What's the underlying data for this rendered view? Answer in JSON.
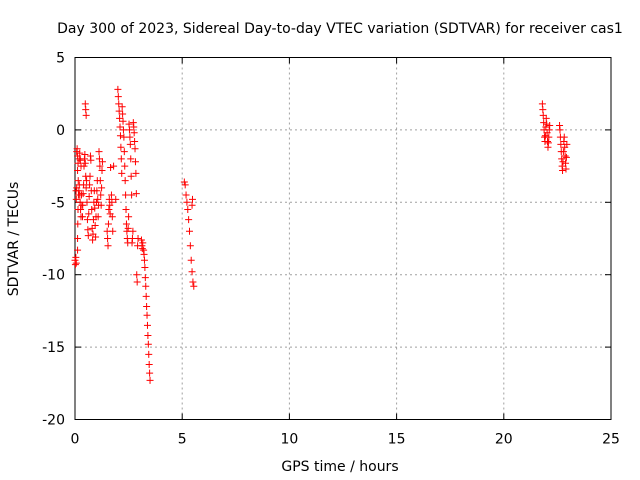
{
  "chart_data": {
    "type": "scatter",
    "title": "Day 300 of 2023, Sidereal Day-to-day VTEC variation (SDTVAR) for receiver cas1",
    "xlabel": "GPS time / hours",
    "ylabel": "SDTVAR / TECUs",
    "xlim": [
      0,
      25
    ],
    "ylim": [
      -20,
      5
    ],
    "xticks": [
      0,
      5,
      10,
      15,
      20,
      25
    ],
    "yticks": [
      -20,
      -15,
      -10,
      -5,
      0,
      5
    ],
    "grid": true,
    "marker": "+",
    "color": "#ff0000",
    "series": [
      {
        "name": "cas1",
        "points": [
          [
            0.0,
            -9.0
          ],
          [
            0.02,
            -9.3
          ],
          [
            0.04,
            -8.8
          ],
          [
            0.06,
            -9.2
          ],
          [
            0.05,
            -4.2
          ],
          [
            0.06,
            -4.8
          ],
          [
            0.08,
            -4.0
          ],
          [
            0.08,
            -1.5
          ],
          [
            0.1,
            -1.3
          ],
          [
            0.12,
            -1.8
          ],
          [
            0.14,
            -2.3
          ],
          [
            0.12,
            -2.8
          ],
          [
            0.15,
            -3.5
          ],
          [
            0.16,
            -4.5
          ],
          [
            0.14,
            -5.5
          ],
          [
            0.13,
            -6.5
          ],
          [
            0.12,
            -7.5
          ],
          [
            0.12,
            -8.3
          ],
          [
            0.18,
            -4.2
          ],
          [
            0.2,
            -3.8
          ],
          [
            0.22,
            -4.5
          ],
          [
            0.24,
            -5.0
          ],
          [
            0.26,
            -5.5
          ],
          [
            0.28,
            -6.0
          ],
          [
            0.2,
            -2.0
          ],
          [
            0.22,
            -1.6
          ],
          [
            0.25,
            -2.1
          ],
          [
            0.28,
            -2.5
          ],
          [
            0.3,
            -4.5
          ],
          [
            0.32,
            -5.2
          ],
          [
            0.35,
            -6.0
          ],
          [
            0.36,
            -5.2
          ],
          [
            0.38,
            -4.4
          ],
          [
            0.4,
            -3.8
          ],
          [
            0.42,
            -2.5
          ],
          [
            0.44,
            -2.0
          ],
          [
            0.46,
            -1.7
          ],
          [
            0.48,
            -2.3
          ],
          [
            0.5,
            -3.2
          ],
          [
            0.52,
            -4.0
          ],
          [
            0.48,
            1.8
          ],
          [
            0.5,
            1.4
          ],
          [
            0.52,
            1.0
          ],
          [
            0.54,
            -3.5
          ],
          [
            0.56,
            -5.0
          ],
          [
            0.58,
            -6.2
          ],
          [
            0.6,
            -6.9
          ],
          [
            0.62,
            -7.3
          ],
          [
            0.64,
            -5.8
          ],
          [
            0.66,
            -4.6
          ],
          [
            0.68,
            -3.8
          ],
          [
            0.7,
            -3.2
          ],
          [
            0.72,
            -1.8
          ],
          [
            0.74,
            -2.1
          ],
          [
            0.76,
            -4.2
          ],
          [
            0.78,
            -5.5
          ],
          [
            0.8,
            -6.8
          ],
          [
            0.82,
            -7.6
          ],
          [
            0.84,
            -7.2
          ],
          [
            0.86,
            -6.2
          ],
          [
            0.88,
            -5.0
          ],
          [
            0.9,
            -4.2
          ],
          [
            0.92,
            -5.4
          ],
          [
            0.94,
            -6.6
          ],
          [
            0.96,
            -7.4
          ],
          [
            0.98,
            -6.0
          ],
          [
            1.0,
            -5.0
          ],
          [
            1.02,
            -4.2
          ],
          [
            1.04,
            -3.5
          ],
          [
            1.06,
            -4.8
          ],
          [
            1.08,
            -6.0
          ],
          [
            1.1,
            -5.2
          ],
          [
            1.12,
            -1.5
          ],
          [
            1.14,
            -2.0
          ],
          [
            1.16,
            -2.5
          ],
          [
            1.18,
            -3.5
          ],
          [
            1.2,
            -4.5
          ],
          [
            1.22,
            -5.2
          ],
          [
            1.24,
            -4.0
          ],
          [
            1.26,
            -2.8
          ],
          [
            1.28,
            -2.2
          ],
          [
            1.5,
            -7.0
          ],
          [
            1.52,
            -7.5
          ],
          [
            1.54,
            -8.0
          ],
          [
            1.56,
            -6.5
          ],
          [
            1.58,
            -5.5
          ],
          [
            1.6,
            -4.8
          ],
          [
            1.62,
            -5.2
          ],
          [
            1.64,
            -5.8
          ],
          [
            1.66,
            -2.6
          ],
          [
            1.7,
            -4.5
          ],
          [
            1.72,
            -5.0
          ],
          [
            1.74,
            -6.0
          ],
          [
            1.76,
            -7.0
          ],
          [
            1.8,
            -2.5
          ],
          [
            1.9,
            -4.8
          ],
          [
            2.0,
            2.8
          ],
          [
            2.02,
            2.3
          ],
          [
            2.04,
            1.8
          ],
          [
            2.06,
            1.3
          ],
          [
            2.08,
            0.8
          ],
          [
            2.1,
            0.2
          ],
          [
            2.12,
            -0.4
          ],
          [
            2.14,
            -1.2
          ],
          [
            2.16,
            -2.0
          ],
          [
            2.18,
            -3.0
          ],
          [
            2.2,
            1.6
          ],
          [
            2.22,
            1.1
          ],
          [
            2.24,
            0.6
          ],
          [
            2.26,
            0.0
          ],
          [
            2.28,
            -0.5
          ],
          [
            2.3,
            -1.5
          ],
          [
            2.32,
            -2.5
          ],
          [
            2.34,
            -3.5
          ],
          [
            2.36,
            -4.5
          ],
          [
            2.38,
            -5.5
          ],
          [
            2.4,
            -6.5
          ],
          [
            2.42,
            -7.0
          ],
          [
            2.44,
            -7.5
          ],
          [
            2.46,
            -7.8
          ],
          [
            2.48,
            -6.8
          ],
          [
            2.5,
            -6.0
          ],
          [
            2.52,
            0.4
          ],
          [
            2.54,
            0.0
          ],
          [
            2.56,
            -0.5
          ],
          [
            2.58,
            -1.0
          ],
          [
            2.6,
            -2.0
          ],
          [
            2.62,
            -3.2
          ],
          [
            2.64,
            -4.5
          ],
          [
            2.66,
            -7.8
          ],
          [
            2.68,
            -7.5
          ],
          [
            2.7,
            -7.0
          ],
          [
            2.72,
            0.5
          ],
          [
            2.74,
            0.2
          ],
          [
            2.76,
            -0.2
          ],
          [
            2.78,
            -0.8
          ],
          [
            2.8,
            -1.3
          ],
          [
            2.82,
            -2.2
          ],
          [
            2.84,
            -3.0
          ],
          [
            2.86,
            -4.4
          ],
          [
            2.88,
            -10.0
          ],
          [
            2.9,
            -10.5
          ],
          [
            2.92,
            -8.0
          ],
          [
            2.94,
            -7.5
          ],
          [
            3.1,
            -7.6
          ],
          [
            3.12,
            -8.0
          ],
          [
            3.14,
            -8.2
          ],
          [
            3.16,
            -7.8
          ],
          [
            3.2,
            -8.3
          ],
          [
            3.22,
            -8.6
          ],
          [
            3.24,
            -9.0
          ],
          [
            3.26,
            -9.5
          ],
          [
            3.28,
            -10.2
          ],
          [
            3.3,
            -10.8
          ],
          [
            3.32,
            -11.5
          ],
          [
            3.34,
            -12.2
          ],
          [
            3.36,
            -12.8
          ],
          [
            3.38,
            -13.5
          ],
          [
            3.4,
            -14.2
          ],
          [
            3.42,
            -14.8
          ],
          [
            3.44,
            -15.5
          ],
          [
            3.46,
            -16.2
          ],
          [
            3.48,
            -16.8
          ],
          [
            3.5,
            -17.3
          ],
          [
            5.1,
            -3.6
          ],
          [
            5.14,
            -3.8
          ],
          [
            5.18,
            -4.5
          ],
          [
            5.22,
            -5.0
          ],
          [
            5.26,
            -5.5
          ],
          [
            5.3,
            -6.2
          ],
          [
            5.34,
            -7.0
          ],
          [
            5.38,
            -8.0
          ],
          [
            5.42,
            -9.0
          ],
          [
            5.46,
            -9.8
          ],
          [
            5.5,
            -10.5
          ],
          [
            5.54,
            -10.8
          ],
          [
            5.46,
            -5.2
          ],
          [
            5.48,
            -4.8
          ],
          [
            21.8,
            1.8
          ],
          [
            21.82,
            1.4
          ],
          [
            21.84,
            1.0
          ],
          [
            21.86,
            0.5
          ],
          [
            21.88,
            0.0
          ],
          [
            21.9,
            -0.5
          ],
          [
            21.92,
            -0.8
          ],
          [
            21.94,
            -0.4
          ],
          [
            21.96,
            0.2
          ],
          [
            21.98,
            0.8
          ],
          [
            22.0,
            0.4
          ],
          [
            22.02,
            -0.2
          ],
          [
            22.04,
            -0.8
          ],
          [
            22.06,
            -1.2
          ],
          [
            22.08,
            -0.9
          ],
          [
            22.1,
            -0.5
          ],
          [
            22.12,
            0.0
          ],
          [
            22.14,
            0.3
          ],
          [
            22.6,
            0.3
          ],
          [
            22.62,
            0.0
          ],
          [
            22.64,
            -0.5
          ],
          [
            22.66,
            -1.0
          ],
          [
            22.68,
            -1.5
          ],
          [
            22.7,
            -2.0
          ],
          [
            22.72,
            -2.5
          ],
          [
            22.74,
            -2.8
          ],
          [
            22.76,
            -2.2
          ],
          [
            22.78,
            -1.5
          ],
          [
            22.8,
            -0.8
          ],
          [
            22.82,
            -0.5
          ],
          [
            22.84,
            -1.2
          ],
          [
            22.86,
            -1.8
          ],
          [
            22.88,
            -2.3
          ],
          [
            22.9,
            -2.7
          ],
          [
            22.92,
            -1.9
          ],
          [
            22.94,
            -1.0
          ]
        ]
      }
    ]
  }
}
